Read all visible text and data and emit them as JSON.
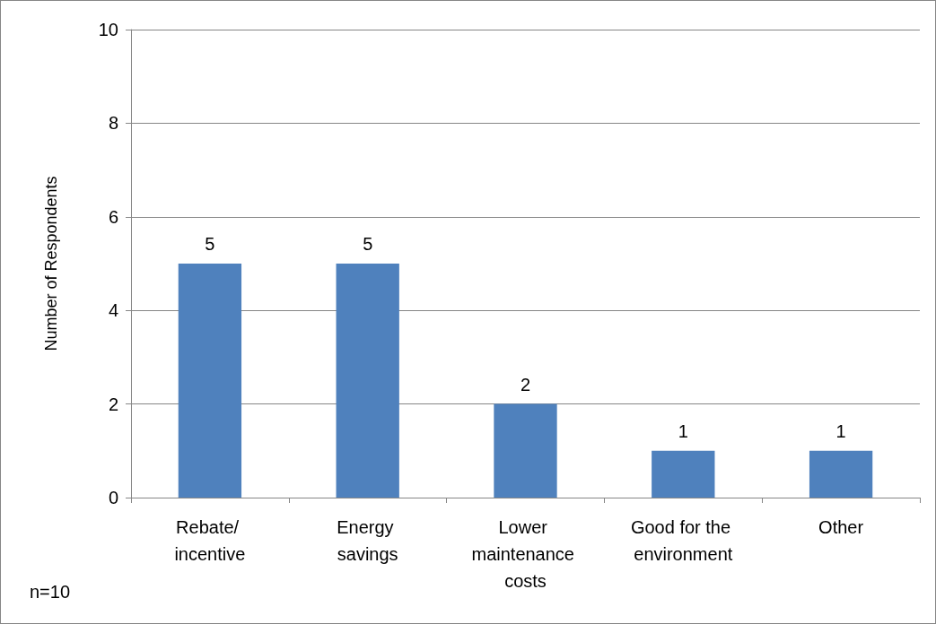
{
  "chart_data": {
    "type": "bar",
    "categories": [
      "Rebate/ incentive",
      "Energy savings",
      "Lower maintenance costs",
      "Good for the environment",
      "Other"
    ],
    "values": [
      5,
      5,
      2,
      1,
      1
    ],
    "color": "#4f81bd",
    "ylabel": "Number of Respondents",
    "ylim": [
      0,
      10
    ],
    "yticks": [
      0,
      2,
      4,
      6,
      8,
      10
    ],
    "grid": "y",
    "data_labels": true,
    "annotations": [
      "n=10"
    ]
  }
}
